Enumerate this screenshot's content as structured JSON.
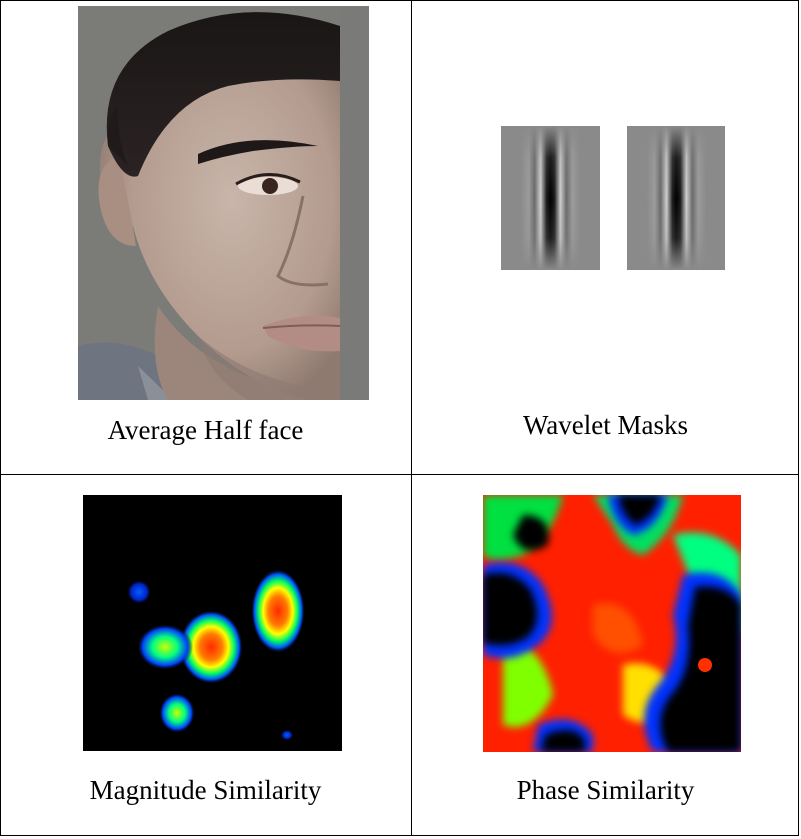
{
  "cells": {
    "top_left": {
      "caption": "Average Half face"
    },
    "top_right": {
      "caption": "Wavelet Masks"
    },
    "bottom_left": {
      "caption": "Magnitude Similarity"
    },
    "bottom_right": {
      "caption": "Phase Similarity"
    }
  },
  "colors": {
    "border": "#000000",
    "face_background": "#7a7a78",
    "mask_background": "#8a8a8a",
    "heatmap_background": "#000000"
  }
}
